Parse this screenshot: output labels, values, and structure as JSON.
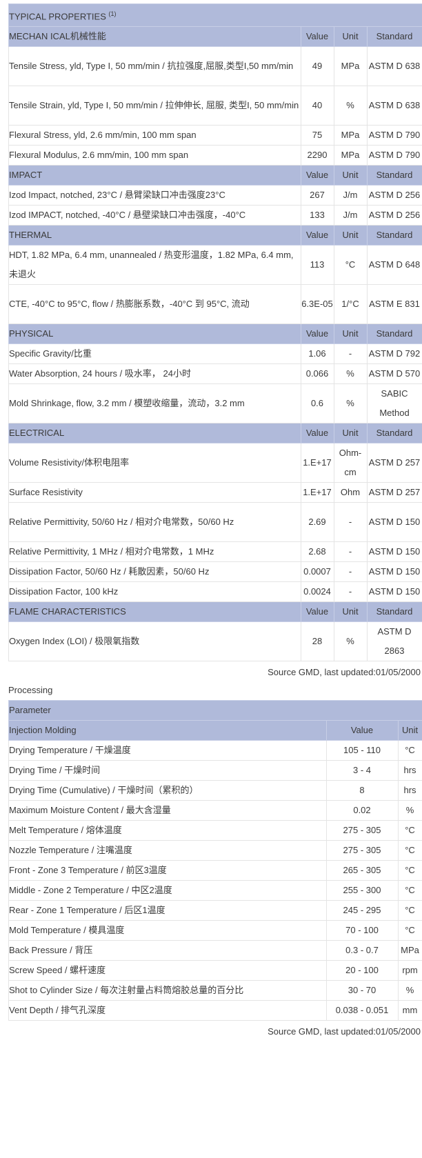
{
  "typical_properties": {
    "title": "TYPICAL PROPERTIES",
    "title_sup": "(1)",
    "sections": [
      {
        "name": "MECHAN ICAL机械性能",
        "value_h": "Value",
        "unit_h": "Unit",
        "std_h": "Standard",
        "rows": [
          {
            "label": "Tensile Stress, yld, Type I, 50 mm/min / 抗拉强度,屈服,类型I,50 mm/min",
            "value": "49",
            "unit": "MPa",
            "standard": "ASTM D 638"
          },
          {
            "label": "Tensile Strain, yld, Type I, 50 mm/min / 拉伸伸长, 屈服, 类型I, 50 mm/min",
            "value": "40",
            "unit": "%",
            "standard": "ASTM D 638"
          },
          {
            "label": "Flexural Stress, yld, 2.6 mm/min, 100 mm span",
            "value": "75",
            "unit": "MPa",
            "standard": "ASTM D 790"
          },
          {
            "label": "Flexural Modulus, 2.6 mm/min, 100 mm span",
            "value": "2290",
            "unit": "MPa",
            "standard": "ASTM D 790"
          }
        ]
      },
      {
        "name": "IMPACT",
        "value_h": "Value",
        "unit_h": "Unit",
        "std_h": "Standard",
        "rows": [
          {
            "label": "Izod Impact, notched, 23°C / 悬臂梁缺口冲击强度23°C",
            "value": "267",
            "unit": "J/m",
            "standard": "ASTM D 256"
          },
          {
            "label": "Izod IMPACT, notched, -40°C / 悬壁梁缺口冲击强度，-40°C",
            "value": "133",
            "unit": "J/m",
            "standard": "ASTM D 256"
          }
        ]
      },
      {
        "name": "THERMAL",
        "value_h": "Value",
        "unit_h": "Unit",
        "std_h": "Standard",
        "rows": [
          {
            "label": "HDT, 1.82 MPa, 6.4 mm, unannealed / 热变形温度，1.82 MPa, 6.4 mm, 未退火",
            "value": "113",
            "unit": "°C",
            "standard": "ASTM D 648"
          },
          {
            "label": "CTE, -40°C to 95°C, flow / 热膨胀系数，-40°C 到 95°C, 流动",
            "value": "6.3E-05",
            "unit": "1/°C",
            "standard": "ASTM E 831"
          }
        ]
      },
      {
        "name": "PHYSICAL",
        "value_h": "Value",
        "unit_h": "Unit",
        "std_h": "Standard",
        "rows": [
          {
            "label": "Specific Gravity/比重",
            "value": "1.06",
            "unit": "-",
            "standard": "ASTM D 792"
          },
          {
            "label": "Water Absorption, 24 hours / 吸水率， 24小时",
            "value": "0.066",
            "unit": "%",
            "standard": "ASTM D 570"
          },
          {
            "label": "Mold Shrinkage, flow, 3.2 mm / 模塑收缩量，流动，3.2 mm",
            "value": "0.6",
            "unit": "%",
            "standard": "SABIC Method"
          }
        ]
      },
      {
        "name": "ELECTRICAL",
        "value_h": "Value",
        "unit_h": "Unit",
        "std_h": "Standard",
        "rows": [
          {
            "label": "Volume Resistivity/体积电阻率",
            "value": "1.E+17",
            "unit": "Ohm-cm",
            "standard": "ASTM D 257"
          },
          {
            "label": "Surface Resistivity",
            "value": "1.E+17",
            "unit": "Ohm",
            "standard": "ASTM D 257"
          },
          {
            "label": "Relative Permittivity, 50/60 Hz / 相对介电常数，50/60 Hz",
            "value": "2.69",
            "unit": "-",
            "standard": "ASTM D 150"
          },
          {
            "label": "Relative Permittivity, 1 MHz / 相对介电常数，1 MHz",
            "value": "2.68",
            "unit": "-",
            "standard": "ASTM D 150"
          },
          {
            "label": "Dissipation Factor, 50/60 Hz / 耗散因素，50/60 Hz",
            "value": "0.0007",
            "unit": "-",
            "standard": "ASTM D 150"
          },
          {
            "label": "Dissipation Factor, 100 kHz",
            "value": "0.0024",
            "unit": "-",
            "standard": "ASTM D 150"
          }
        ]
      },
      {
        "name": "FLAME CHARACTERISTICS",
        "value_h": "Value",
        "unit_h": "Unit",
        "std_h": "Standard",
        "rows": [
          {
            "label": "Oxygen Index (LOI) / 极限氧指数",
            "value": "28",
            "unit": "%",
            "standard": "ASTM D 2863"
          }
        ]
      }
    ],
    "source": "Source GMD, last updated:01/05/2000"
  },
  "processing": {
    "title": "Processing",
    "param_header": "Parameter",
    "section": "Injection Molding",
    "value_h": "Value",
    "unit_h": "Unit",
    "rows": [
      {
        "label": "Drying Temperature / 干燥温度",
        "value": "105 - 110",
        "unit": "°C"
      },
      {
        "label": "Drying Time / 干燥时间",
        "value": "3 - 4",
        "unit": "hrs"
      },
      {
        "label": "Drying Time (Cumulative) / 干燥时间（累积的）",
        "value": "8",
        "unit": "hrs"
      },
      {
        "label": "Maximum Moisture Content / 最大含湿量",
        "value": "0.02",
        "unit": "%"
      },
      {
        "label": "Melt Temperature / 熔体温度",
        "value": "275 - 305",
        "unit": "°C"
      },
      {
        "label": "Nozzle Temperature / 注嘴温度",
        "value": "275 - 305",
        "unit": "°C"
      },
      {
        "label": "Front - Zone 3 Temperature / 前区3温度",
        "value": "265 - 305",
        "unit": "°C"
      },
      {
        "label": "Middle - Zone 2 Temperature / 中区2温度",
        "value": "255 - 300",
        "unit": "°C"
      },
      {
        "label": "Rear - Zone 1 Temperature / 后区1温度",
        "value": "245 - 295",
        "unit": "°C"
      },
      {
        "label": "Mold Temperature / 模具温度",
        "value": "70 - 100",
        "unit": "°C"
      },
      {
        "label": "Back Pressure / 背压",
        "value": "0.3 - 0.7",
        "unit": "MPa"
      },
      {
        "label": "Screw Speed / 螺杆速度",
        "value": "20 - 100",
        "unit": "rpm"
      },
      {
        "label": "Shot to Cylinder Size / 每次注射量占料筒熔胶总量的百分比",
        "value": "30 - 70",
        "unit": "%"
      },
      {
        "label": "Vent Depth / 排气孔深度",
        "value": "0.038 - 0.051",
        "unit": "mm"
      }
    ],
    "source": "Source GMD, last updated:01/05/2000"
  }
}
